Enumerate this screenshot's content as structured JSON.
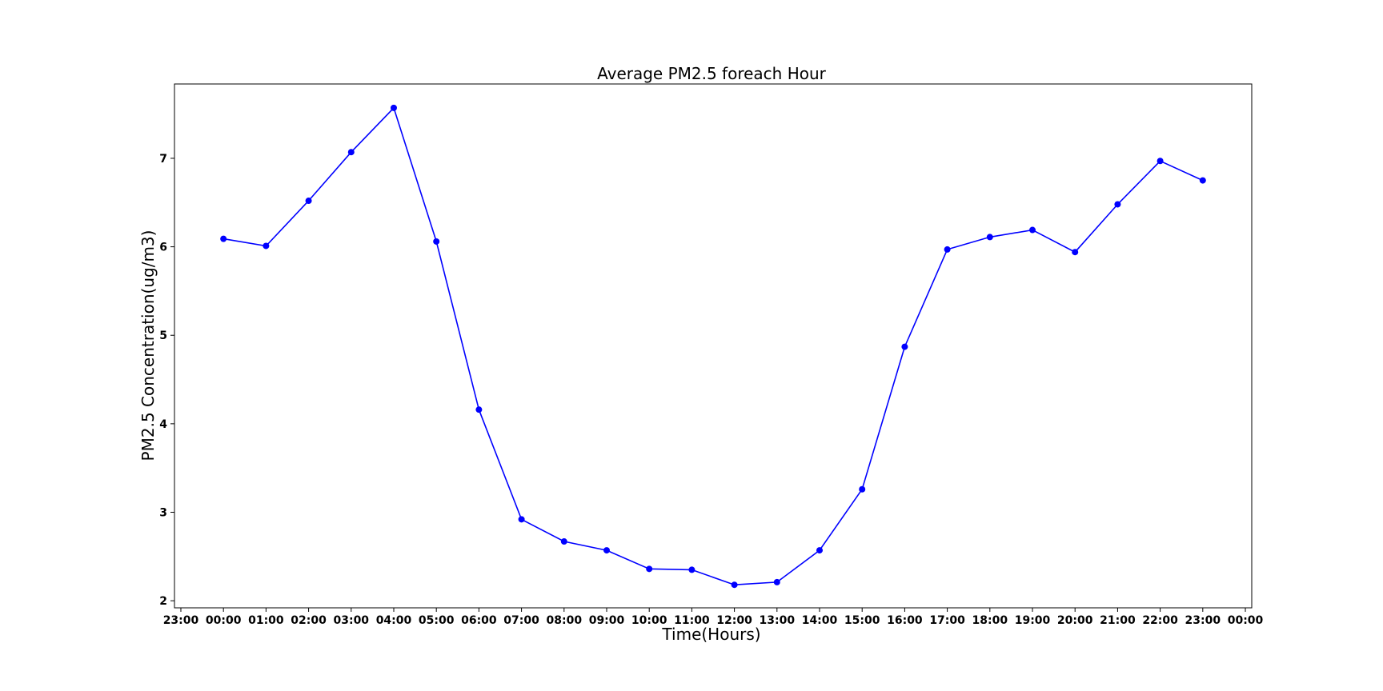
{
  "chart_data": {
    "type": "line",
    "title": "Average PM2.5 foreach Hour",
    "xlabel": "Time(Hours)",
    "ylabel": "PM2.5 Concentration(ug/m3)",
    "x_tick_labels": [
      "23:00",
      "00:00",
      "01:00",
      "02:00",
      "03:00",
      "04:00",
      "05:00",
      "06:00",
      "07:00",
      "08:00",
      "09:00",
      "10:00",
      "11:00",
      "12:00",
      "13:00",
      "14:00",
      "15:00",
      "16:00",
      "17:00",
      "18:00",
      "19:00",
      "20:00",
      "21:00",
      "22:00",
      "23:00",
      "00:00"
    ],
    "y_ticks": [
      2,
      3,
      4,
      5,
      6,
      7
    ],
    "ylim": [
      1.92,
      7.84
    ],
    "xlim": [
      -1.15,
      24.15
    ],
    "grid": false,
    "series": [
      {
        "color": "#0000ff",
        "marker": "circle",
        "x": [
          "00:00",
          "01:00",
          "02:00",
          "03:00",
          "04:00",
          "05:00",
          "06:00",
          "07:00",
          "08:00",
          "09:00",
          "10:00",
          "11:00",
          "12:00",
          "13:00",
          "14:00",
          "15:00",
          "16:00",
          "17:00",
          "18:00",
          "19:00",
          "20:00",
          "21:00",
          "22:00",
          "23:00"
        ],
        "values": [
          6.09,
          6.01,
          6.52,
          7.07,
          7.57,
          6.06,
          4.16,
          2.92,
          2.67,
          2.57,
          2.36,
          2.35,
          2.18,
          2.21,
          2.57,
          3.26,
          4.87,
          5.97,
          6.11,
          6.19,
          5.94,
          6.48,
          6.97,
          6.75
        ]
      }
    ]
  }
}
